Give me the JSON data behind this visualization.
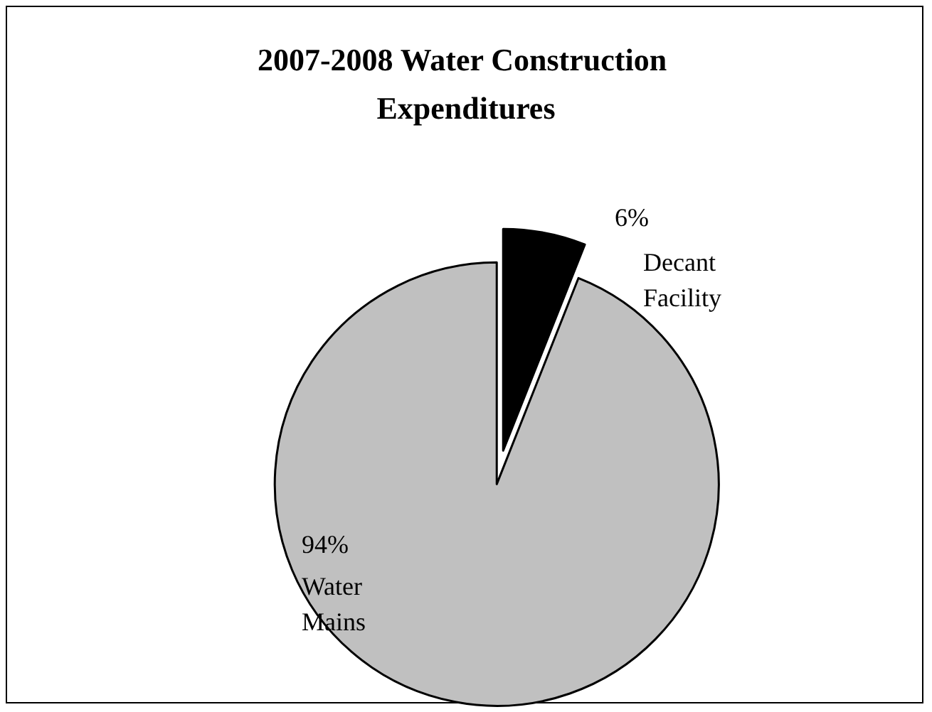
{
  "chart_data": {
    "type": "pie",
    "title": "2007-2008 Water Construction Expenditures",
    "categories": [
      "Decant Facility",
      "Water Mains"
    ],
    "values": [
      6,
      94
    ],
    "colors": [
      "#000000",
      "#c0c0c0"
    ],
    "value_labels": [
      "6%",
      "94%"
    ],
    "legend": false
  }
}
